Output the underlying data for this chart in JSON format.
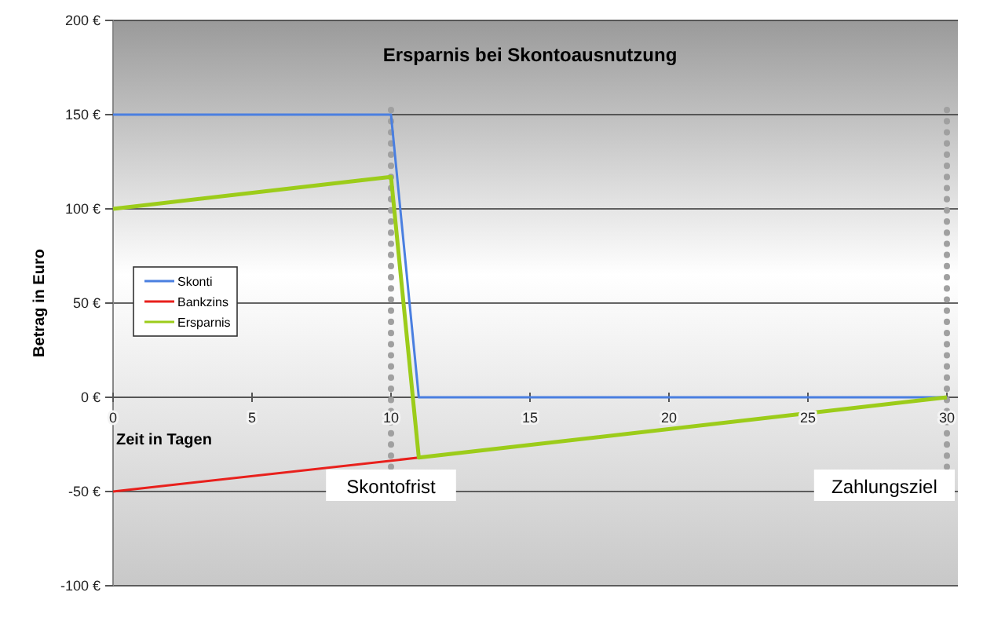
{
  "chart_data": {
    "type": "line",
    "title": "Ersparnis bei Skontoausnutzung",
    "xlabel": "Zeit in Tagen",
    "ylabel": "Betrag in Euro",
    "xlim": [
      0,
      30
    ],
    "xticks": [
      0,
      5,
      10,
      15,
      20,
      25,
      30
    ],
    "ylim": [
      -100,
      200
    ],
    "yticks": [
      {
        "value": -100,
        "label": "-100 €"
      },
      {
        "value": -50,
        "label": "-50 €"
      },
      {
        "value": 0,
        "label": "0 €"
      },
      {
        "value": 50,
        "label": "50 €"
      },
      {
        "value": 100,
        "label": "100 €"
      },
      {
        "value": 150,
        "label": "150 €"
      },
      {
        "value": 200,
        "label": "200 €"
      }
    ],
    "grid": "y",
    "legend": "left",
    "marker": "none",
    "line_style": "solid",
    "series": [
      {
        "name": "Skonti",
        "color": "#4a7fe0",
        "x": [
          0,
          10,
          11,
          30
        ],
        "values": [
          150,
          150,
          0,
          0
        ]
      },
      {
        "name": "Bankzins",
        "color": "#e8201c",
        "x": [
          0,
          11
        ],
        "values": [
          -50,
          -32
        ]
      },
      {
        "name": "Ersparnis",
        "color": "#9ccc1a",
        "x": [
          0,
          10,
          11,
          30
        ],
        "values": [
          100,
          117,
          -32,
          0
        ]
      }
    ],
    "ref_lines": [
      {
        "axis": "x",
        "value": 10,
        "label": "Skontofrist",
        "color": "#a0a0a0",
        "line_style": "dotted"
      },
      {
        "axis": "x",
        "value": 30,
        "label": "Zahlungsziel",
        "color": "#a0a0a0",
        "line_style": "dotted"
      }
    ]
  }
}
